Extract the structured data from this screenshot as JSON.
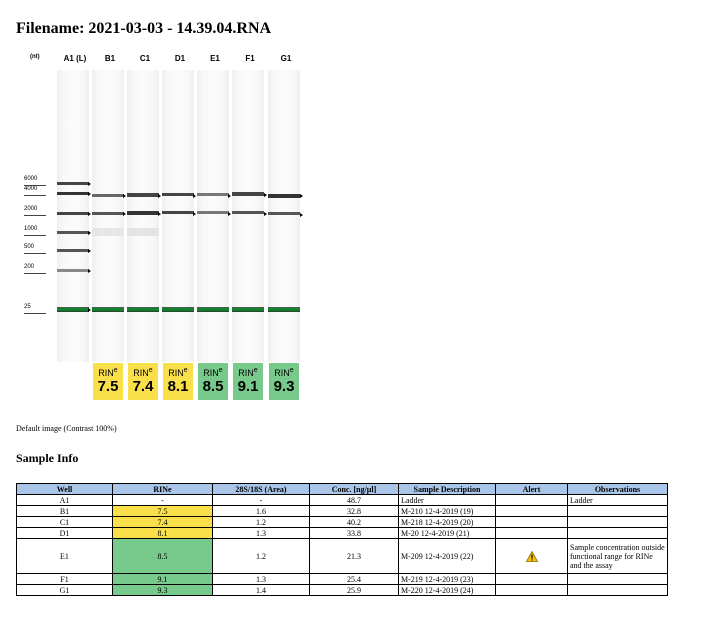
{
  "header": {
    "filename": "Filename: 2021-03-03 - 14.39.04.RNA"
  },
  "gel": {
    "unit": "(nt)",
    "lanes": [
      "A1 (L)",
      "B1",
      "C1",
      "D1",
      "E1",
      "F1",
      "G1"
    ],
    "ladder_sizes": [
      "6000",
      "4000",
      "2000",
      "1000",
      "500",
      "200",
      "25"
    ],
    "rin_label": "RIN",
    "rin_sup": "e",
    "rin_values": [
      "7.5",
      "7.4",
      "8.1",
      "8.5",
      "9.1",
      "9.3"
    ],
    "colors": {
      "yellow": "#f9e04b",
      "green": "#78c98c",
      "marker": "#0b8a2a"
    }
  },
  "caption": "Default image (Contrast 100%)",
  "section_title": "Sample Info",
  "table": {
    "headers": [
      "Well",
      "RINe",
      "28S/18S (Area)",
      "Conc. [ng/µl]",
      "Sample Description",
      "Alert",
      "Observations"
    ],
    "rows": [
      {
        "well": "A1",
        "rine": "-",
        "ratio": "-",
        "conc": "48.7",
        "desc": "Ladder",
        "alert": "",
        "obs": "Ladder"
      },
      {
        "well": "B1",
        "rine": "7.5",
        "ratio": "1.6",
        "conc": "32.8",
        "desc": "M-210 12-4-2019 (19)",
        "alert": "",
        "obs": ""
      },
      {
        "well": "C1",
        "rine": "7.4",
        "ratio": "1.2",
        "conc": "40.2",
        "desc": "M-218 12-4-2019 (20)",
        "alert": "",
        "obs": ""
      },
      {
        "well": "D1",
        "rine": "8.1",
        "ratio": "1.3",
        "conc": "33.8",
        "desc": "M-20 12-4-2019 (21)",
        "alert": "",
        "obs": ""
      },
      {
        "well": "E1",
        "rine": "8.5",
        "ratio": "1.2",
        "conc": "21.3",
        "desc": "M-209 12-4-2019 (22)",
        "alert": "warning-icon",
        "obs": "Sample concentration outside functional range for RINe and the assay"
      },
      {
        "well": "F1",
        "rine": "9.1",
        "ratio": "1.3",
        "conc": "25.4",
        "desc": "M-219 12-4-2019 (23)",
        "alert": "",
        "obs": ""
      },
      {
        "well": "G1",
        "rine": "9.3",
        "ratio": "1.4",
        "conc": "25.9",
        "desc": "M-220 12-4-2019 (24)",
        "alert": "",
        "obs": ""
      }
    ]
  }
}
